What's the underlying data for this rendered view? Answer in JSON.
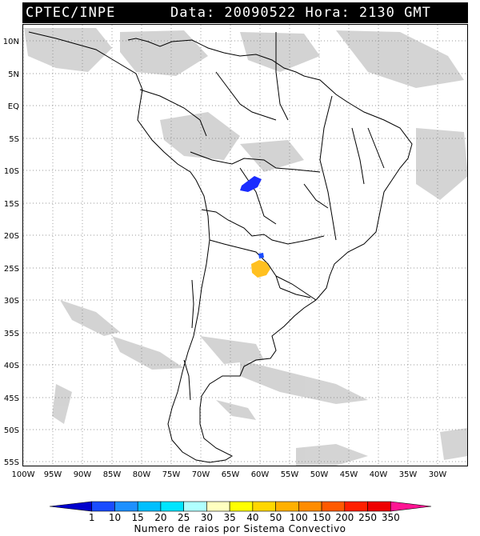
{
  "header": {
    "source": "CPTEC/INPE",
    "date_text": "Data: 20090522 Hora: 2130 GMT"
  },
  "map": {
    "lat_labels": [
      "10N",
      "5N",
      "EQ",
      "5S",
      "10S",
      "15S",
      "20S",
      "25S",
      "30S",
      "35S",
      "40S",
      "45S",
      "50S",
      "55S"
    ],
    "lon_labels": [
      "100W",
      "95W",
      "90W",
      "85W",
      "80W",
      "75W",
      "70W",
      "65W",
      "60W",
      "55W",
      "50W",
      "45W",
      "40W",
      "35W",
      "30W"
    ],
    "grid": "dotted"
  },
  "legend": {
    "ticks": [
      "1",
      "10",
      "15",
      "20",
      "25",
      "30",
      "35",
      "40",
      "50",
      "100",
      "150",
      "200",
      "250",
      "350"
    ],
    "colors": [
      "#0000cc",
      "#1a4cff",
      "#1e90ff",
      "#00bfff",
      "#00e5ff",
      "#b0ffff",
      "#ffffc0",
      "#ffff00",
      "#ffd700",
      "#ffb000",
      "#ff8c00",
      "#ff5a00",
      "#ff2000",
      "#ee0000",
      "#ff1493"
    ],
    "title": "Numero de raios por Sistema Convectivo"
  },
  "convective_systems": [
    {
      "value_class": "1-10",
      "color": "#1a2cff"
    },
    {
      "value_class": "1-10",
      "color": "#1a4cff"
    },
    {
      "value_class": "40-50",
      "color": "#ffc020"
    }
  ]
}
